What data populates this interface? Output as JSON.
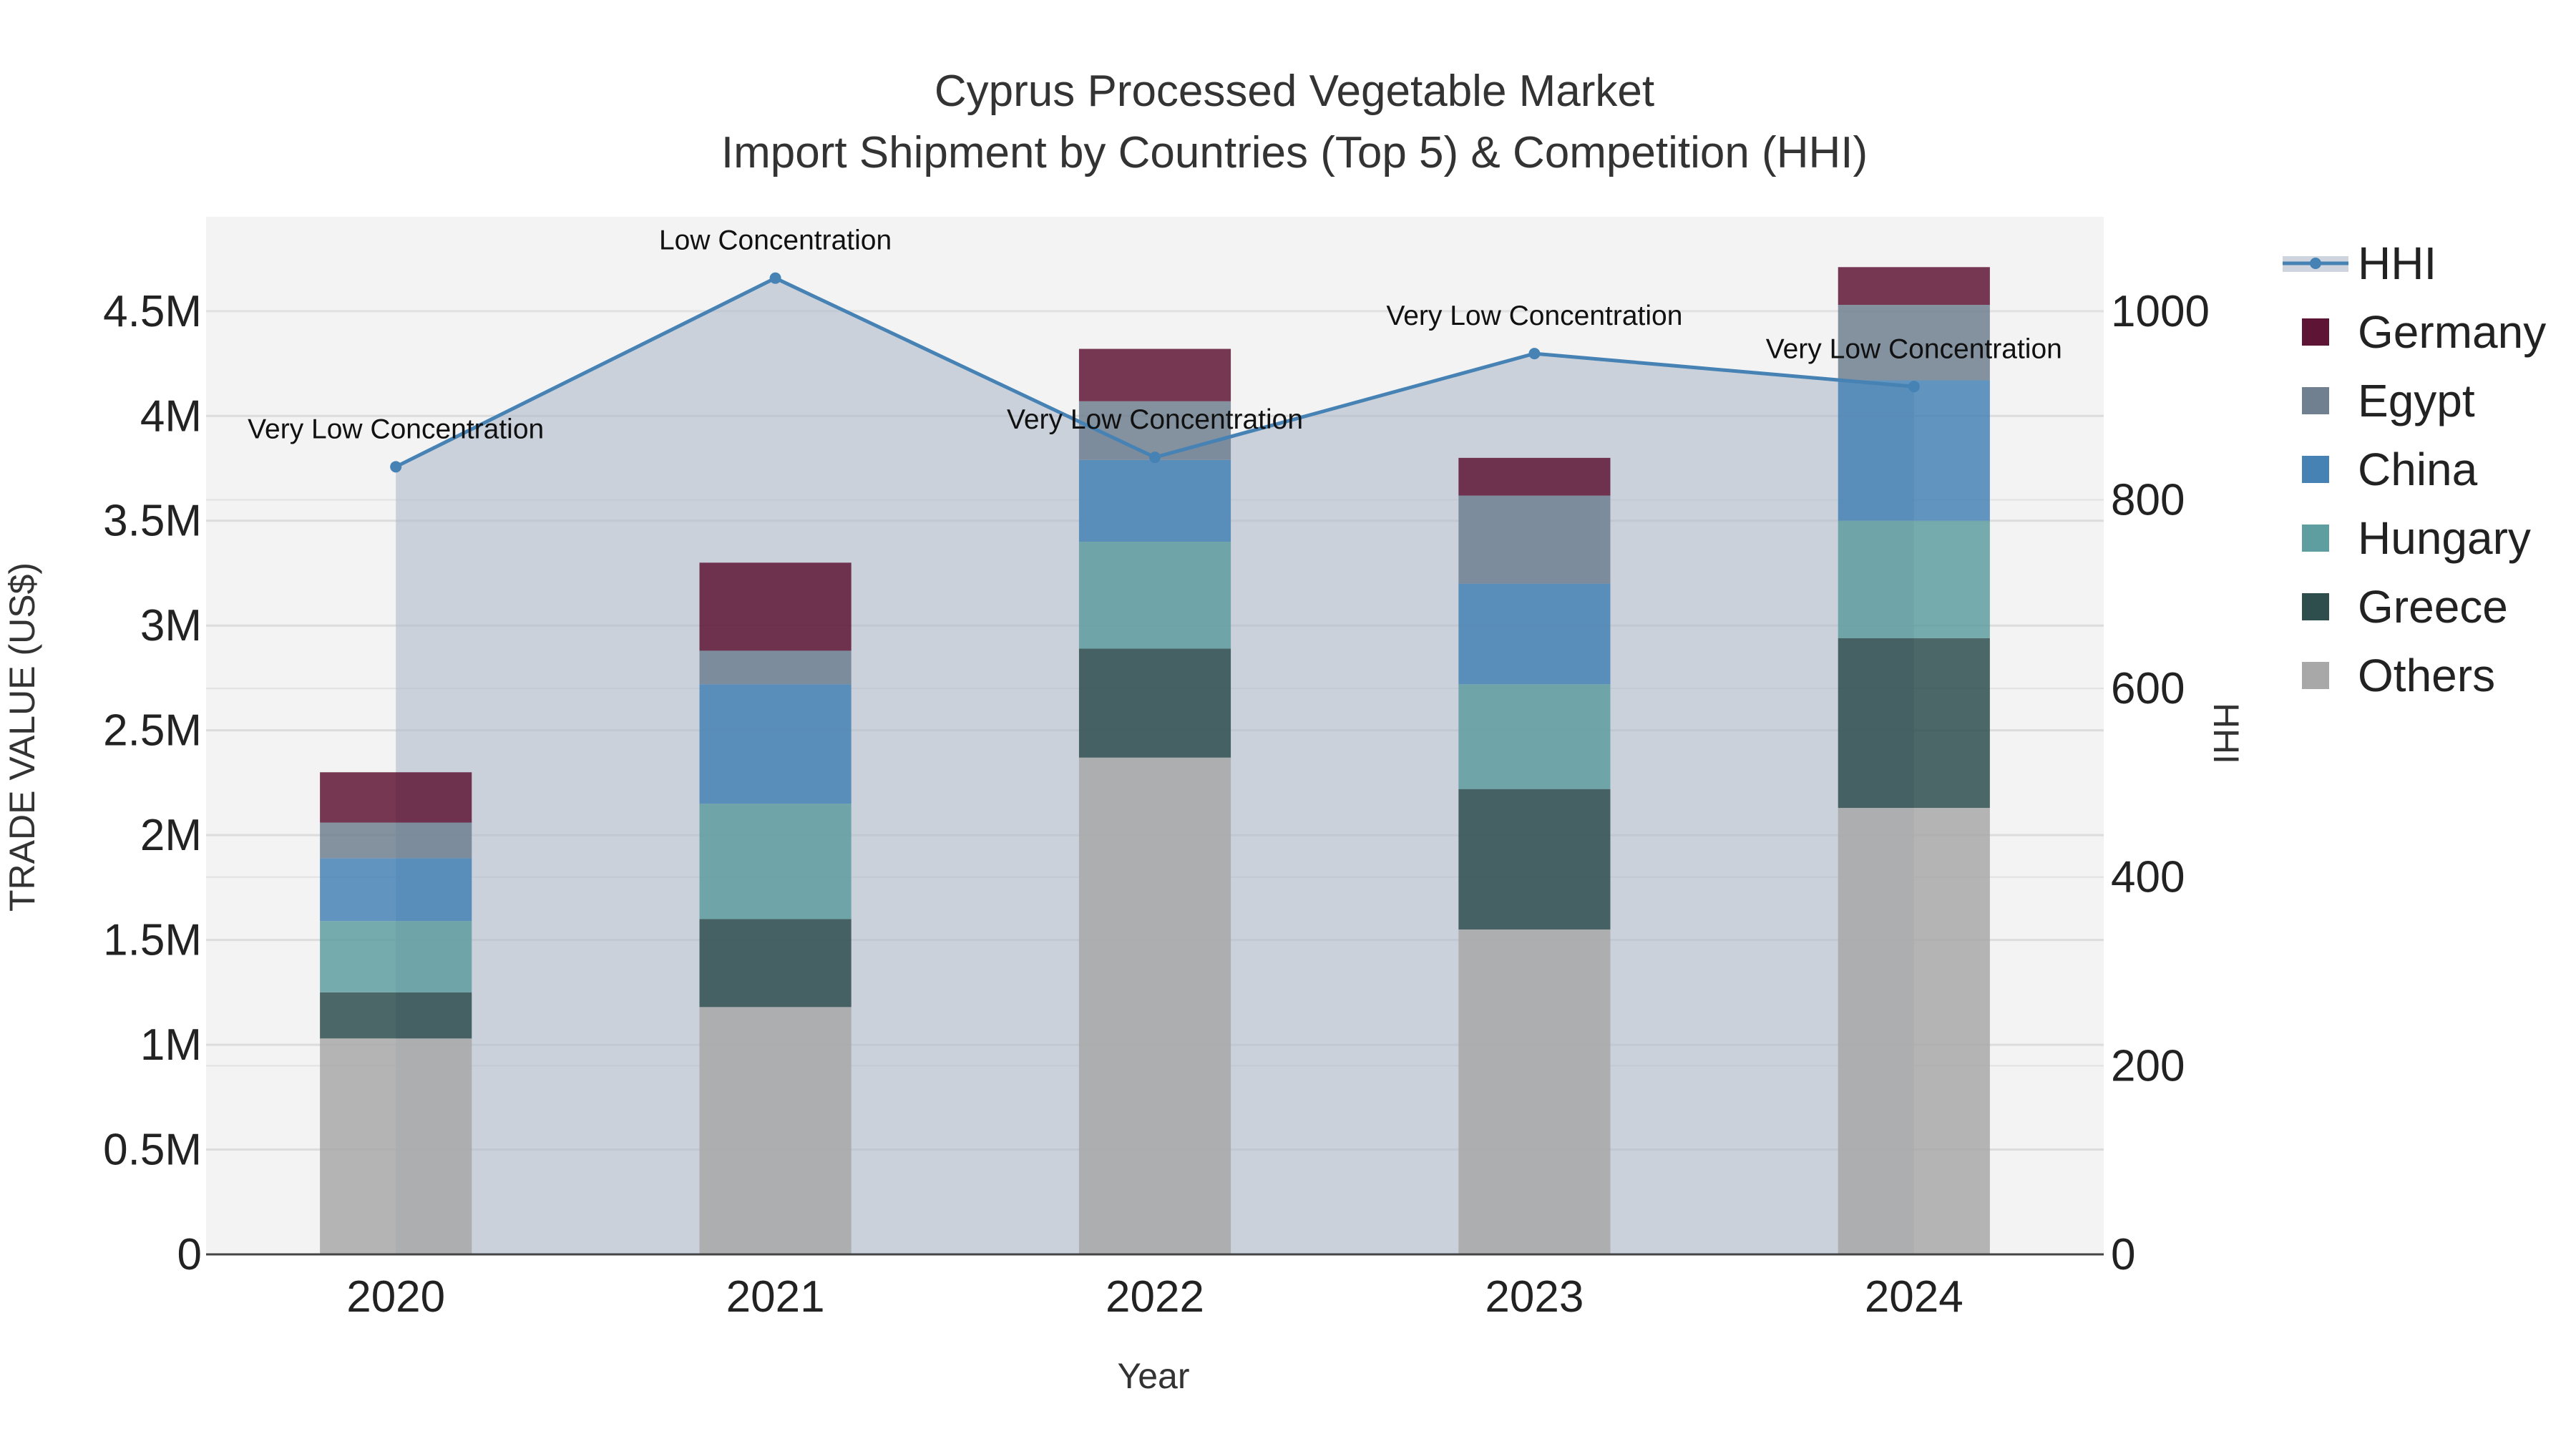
{
  "colors": {
    "Others": "#a8a8a8",
    "Greece": "#2e4d4d",
    "Hungary": "#5f9ea0",
    "China": "#4682b4",
    "Egypt": "#708090",
    "Germany": "#5e1535",
    "HHI": "#4682b4",
    "hhi_fill": "#b0bccb",
    "plot_bg": "#f3f3f3"
  },
  "chart_data": {
    "type": "bar",
    "stacked": true,
    "title": "Cyprus Processed Vegetable Market",
    "subtitle": "Import Shipment by Countries (Top 5) & Competition (HHI)",
    "xlabel": "Year",
    "ylabel": "TRADE VALUE (US$)",
    "y2label": "HHI",
    "categories": [
      "2020",
      "2021",
      "2022",
      "2023",
      "2024"
    ],
    "ylim": [
      0,
      4950000
    ],
    "y2lim": [
      0,
      1100
    ],
    "yticks": [
      0,
      500000,
      1000000,
      1500000,
      2000000,
      2500000,
      3000000,
      3500000,
      4000000,
      4500000
    ],
    "ytick_labels": [
      "0",
      "0.5M",
      "1M",
      "1.5M",
      "2M",
      "2.5M",
      "3M",
      "3.5M",
      "4M",
      "4.5M"
    ],
    "y2ticks": [
      0,
      200,
      400,
      600,
      800,
      1000
    ],
    "y2tick_labels": [
      "0",
      "200",
      "400",
      "600",
      "800",
      "1000"
    ],
    "series": [
      {
        "name": "Others",
        "values": [
          1030000,
          1180000,
          2370000,
          1550000,
          2130000
        ]
      },
      {
        "name": "Greece",
        "values": [
          220000,
          420000,
          520000,
          670000,
          810000
        ]
      },
      {
        "name": "Hungary",
        "values": [
          340000,
          550000,
          510000,
          500000,
          560000
        ]
      },
      {
        "name": "China",
        "values": [
          300000,
          570000,
          390000,
          480000,
          670000
        ]
      },
      {
        "name": "Egypt",
        "values": [
          170000,
          160000,
          280000,
          420000,
          360000
        ]
      },
      {
        "name": "Germany",
        "values": [
          240000,
          420000,
          250000,
          180000,
          180000
        ]
      }
    ],
    "line": {
      "name": "HHI",
      "values": [
        835,
        1035,
        845,
        955,
        920
      ],
      "labels": [
        "Very Low Concentration",
        "Low Concentration",
        "Very Low Concentration",
        "Very Low Concentration",
        "Very Low Concentration"
      ]
    },
    "legend": [
      "HHI",
      "Germany",
      "Egypt",
      "China",
      "Hungary",
      "Greece",
      "Others"
    ],
    "legend_position": "right"
  }
}
